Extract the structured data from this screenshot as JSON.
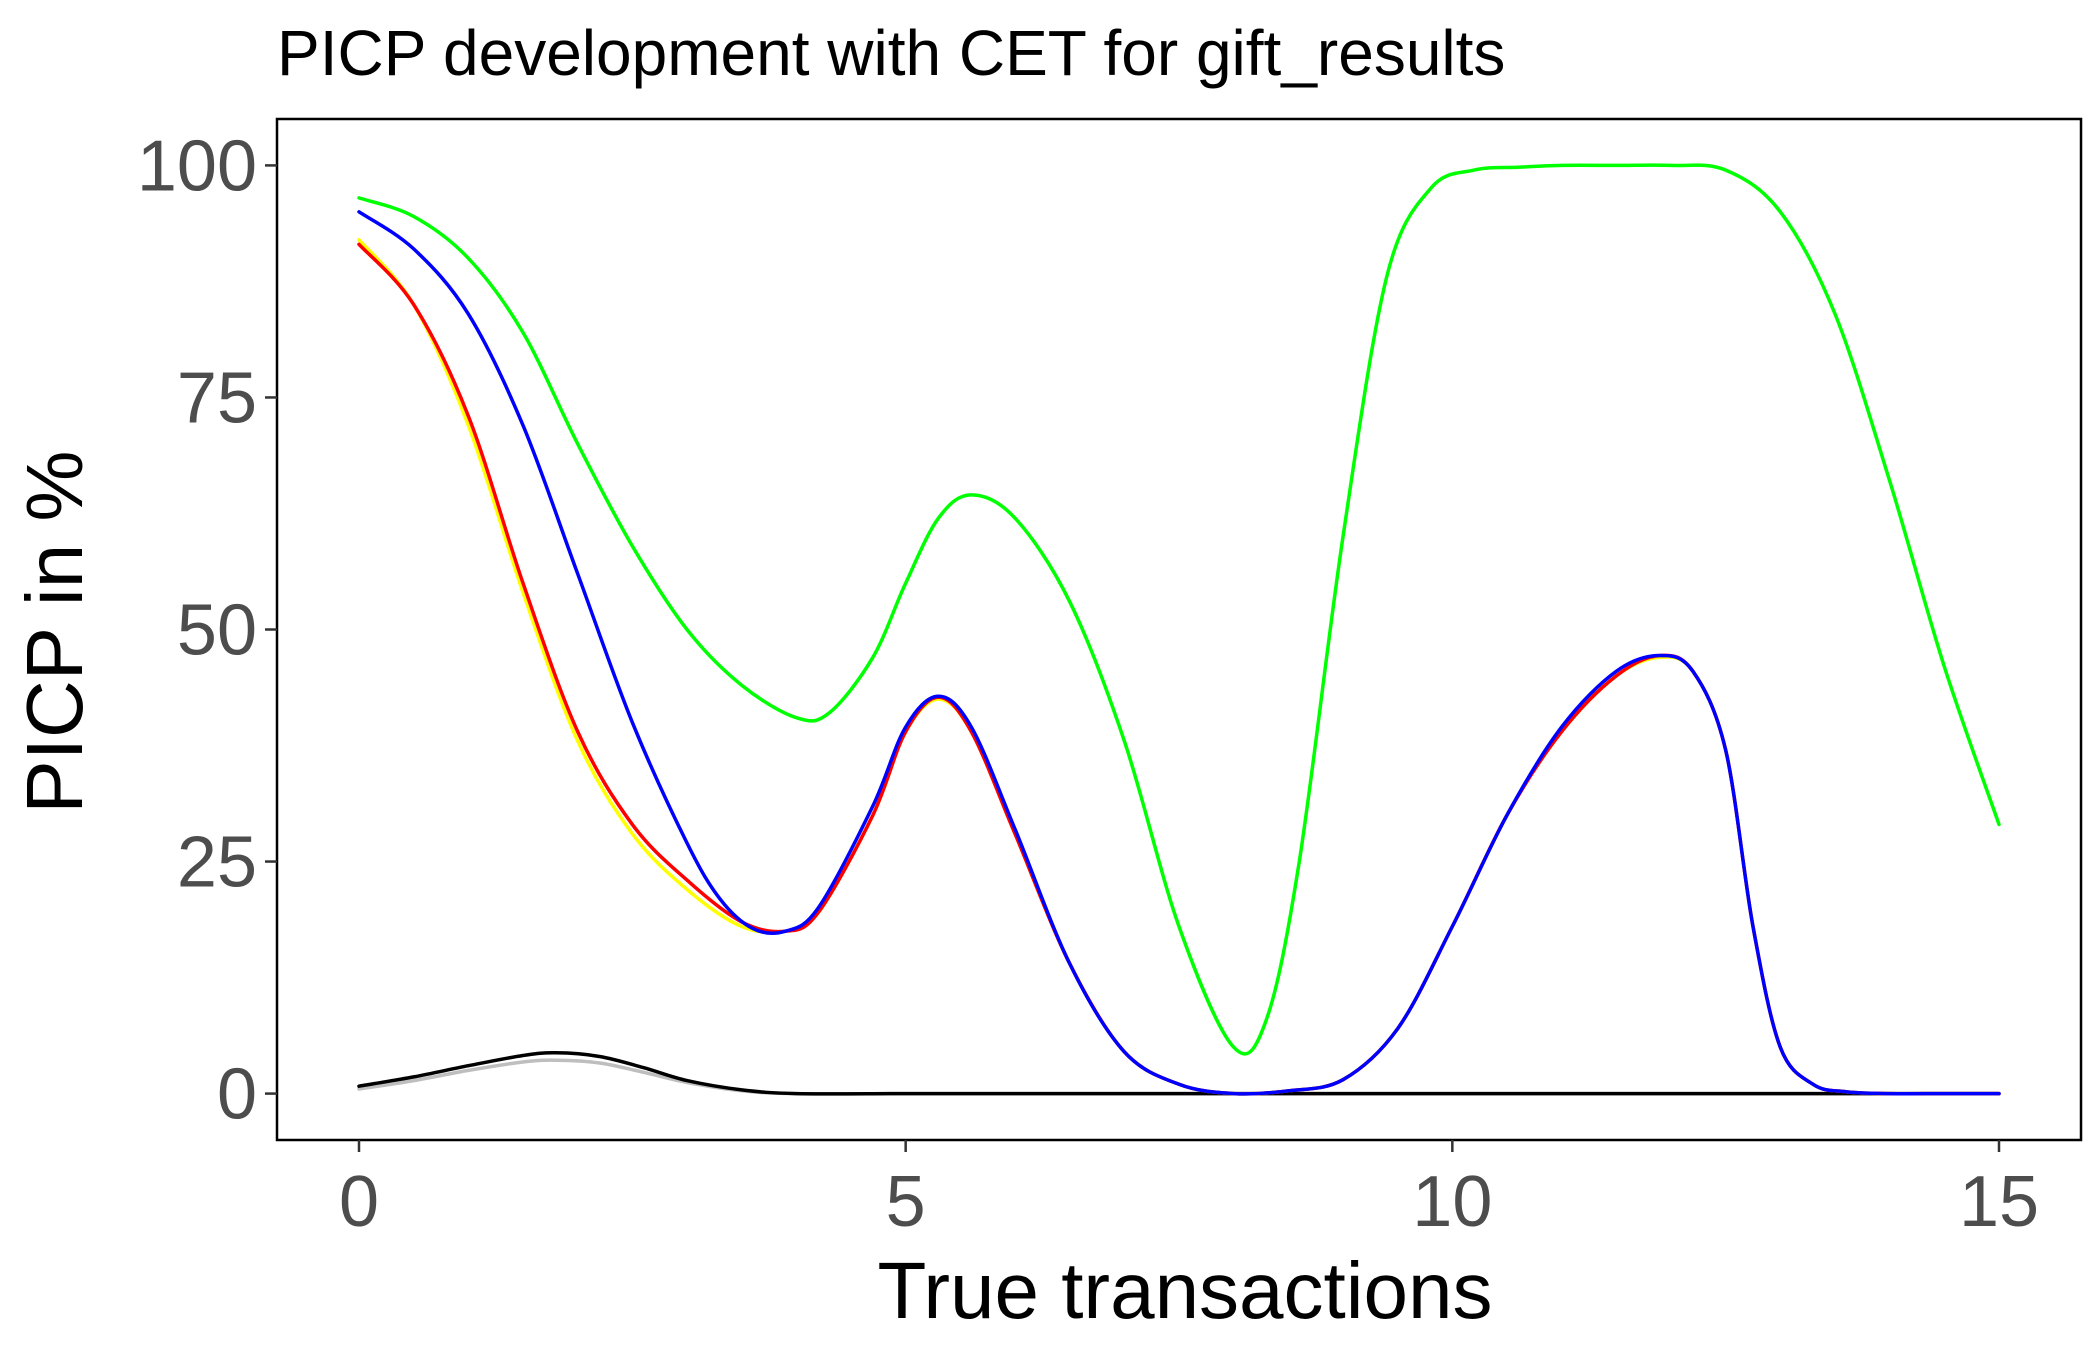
{
  "chart_data": {
    "type": "line",
    "title": "PICP development with CET for gift_results",
    "xlabel": "True transactions",
    "ylabel": "PICP in %",
    "xlim": [
      -0.75,
      15.75
    ],
    "ylim": [
      -5,
      105
    ],
    "xticks": [
      0,
      5,
      10,
      15
    ],
    "yticks": [
      0,
      25,
      50,
      75,
      100
    ],
    "grid": false,
    "legend": "none",
    "series": [
      {
        "color": "#bebebe",
        "x": [
          0,
          0.5,
          1,
          1.5,
          1.8,
          2.2,
          2.6,
          3,
          3.5,
          4,
          5,
          6,
          7,
          8,
          9,
          10,
          11,
          12,
          13,
          14,
          15
        ],
        "y": [
          0.5,
          1.4,
          2.5,
          3.4,
          3.6,
          3.3,
          2.3,
          1.2,
          0.3,
          0,
          0,
          0,
          0,
          0,
          0,
          0,
          0,
          0,
          0,
          0,
          0
        ]
      },
      {
        "color": "#000000",
        "x": [
          0,
          0.5,
          1,
          1.5,
          1.8,
          2.2,
          2.6,
          3,
          3.5,
          4,
          5,
          6,
          7,
          8,
          9,
          10,
          11,
          12,
          13,
          14,
          15
        ],
        "y": [
          0.8,
          1.8,
          3.0,
          4.1,
          4.4,
          4.0,
          2.8,
          1.4,
          0.4,
          0,
          0,
          0,
          0,
          0,
          0,
          0,
          0,
          0,
          0,
          0,
          0
        ]
      },
      {
        "color": "#ffff00",
        "x": [
          0,
          0.5,
          1,
          1.5,
          2,
          2.5,
          3,
          3.5,
          3.9,
          4.2,
          4.7,
          5.0,
          5.3,
          5.6,
          6.0,
          6.5,
          7.0,
          7.5,
          8.0,
          8.5,
          9.0,
          9.5,
          10.0,
          10.5,
          11.0,
          11.5,
          11.9,
          12.2,
          12.5,
          12.75,
          13.0,
          13.3,
          13.6,
          14,
          14.5,
          15
        ],
        "y": [
          92,
          85,
          72,
          54,
          38,
          28,
          22,
          18,
          17.5,
          19.5,
          30,
          39,
          42.5,
          39,
          28,
          14,
          4.5,
          1,
          0,
          0.3,
          1.5,
          7,
          18,
          30,
          39,
          45,
          47,
          45.5,
          37,
          18,
          5,
          1,
          0.2,
          0,
          0,
          0
        ]
      },
      {
        "color": "#ff0000",
        "x": [
          0,
          0.5,
          1,
          1.5,
          2,
          2.5,
          3,
          3.5,
          3.9,
          4.2,
          4.7,
          5.0,
          5.3,
          5.6,
          6.0,
          6.5,
          7.0,
          7.5,
          8.0,
          8.5,
          9.0,
          9.5,
          10.0,
          10.5,
          11.0,
          11.5,
          11.9,
          12.2,
          12.5,
          12.75,
          13.0,
          13.3,
          13.6,
          14,
          14.5,
          15
        ],
        "y": [
          91.5,
          85,
          73,
          55,
          39,
          29,
          23,
          18.5,
          17.5,
          19.5,
          30,
          39,
          42.7,
          39,
          28,
          14,
          4.5,
          1,
          0,
          0.3,
          1.5,
          7,
          18,
          30,
          39,
          45,
          47.2,
          45.5,
          37,
          18,
          5,
          1,
          0.2,
          0,
          0,
          0
        ]
      },
      {
        "color": "#0000ff",
        "x": [
          0,
          0.5,
          1,
          1.5,
          2,
          2.5,
          3,
          3.3,
          3.6,
          3.9,
          4.2,
          4.7,
          5.0,
          5.3,
          5.6,
          6.0,
          6.5,
          7.0,
          7.5,
          8.0,
          8.5,
          9.0,
          9.5,
          10.0,
          10.5,
          11.0,
          11.5,
          11.9,
          12.2,
          12.5,
          12.75,
          13.0,
          13.3,
          13.6,
          14,
          14.5,
          15
        ],
        "y": [
          95,
          91,
          84,
          72,
          56,
          40,
          27,
          21,
          17.8,
          17.5,
          20,
          31,
          39.5,
          42.8,
          39.5,
          28.5,
          14,
          4.5,
          1,
          0,
          0.3,
          1.5,
          7,
          18,
          30,
          39.5,
          45.5,
          47.2,
          45.5,
          37,
          18,
          5,
          1,
          0.2,
          0,
          0,
          0
        ]
      },
      {
        "color": "#00ff00",
        "x": [
          0,
          0.5,
          1,
          1.5,
          2,
          2.5,
          3,
          3.5,
          4.0,
          4.3,
          4.7,
          5.0,
          5.3,
          5.6,
          6.0,
          6.5,
          7.0,
          7.5,
          8.0,
          8.3,
          8.6,
          9.0,
          9.4,
          9.8,
          10.2,
          10.6,
          11,
          11.5,
          12,
          12.5,
          13.0,
          13.5,
          14.0,
          14.5,
          15
        ],
        "y": [
          96.5,
          94.5,
          90,
          82,
          70,
          59,
          50,
          44,
          40.5,
          41,
          47,
          55,
          62,
          64.5,
          62,
          53,
          38,
          18,
          5,
          8,
          25,
          60,
          88,
          97.5,
          99.5,
          99.8,
          100,
          100,
          100,
          99.5,
          95,
          84,
          66,
          46,
          29
        ]
      }
    ]
  }
}
